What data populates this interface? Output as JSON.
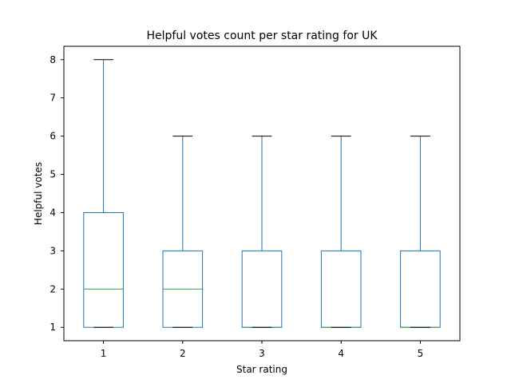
{
  "chart_data": {
    "type": "box",
    "title": "Helpful votes count per star rating for UK",
    "xlabel": "Star rating",
    "ylabel": "Helpful votes",
    "categories": [
      "1",
      "2",
      "3",
      "4",
      "5"
    ],
    "ylim": [
      0.65,
      8.35
    ],
    "yticks": [
      1,
      2,
      3,
      4,
      5,
      6,
      7,
      8
    ],
    "grid": false,
    "boxes": [
      {
        "category": "1",
        "whisker_low": 1,
        "q1": 1,
        "median": 2,
        "q3": 4,
        "whisker_high": 8
      },
      {
        "category": "2",
        "whisker_low": 1,
        "q1": 1,
        "median": 2,
        "q3": 3,
        "whisker_high": 6
      },
      {
        "category": "3",
        "whisker_low": 1,
        "q1": 1,
        "median": 1,
        "q3": 3,
        "whisker_high": 6
      },
      {
        "category": "4",
        "whisker_low": 1,
        "q1": 1,
        "median": 1,
        "q3": 3,
        "whisker_high": 6
      },
      {
        "category": "5",
        "whisker_low": 1,
        "q1": 1,
        "median": 1,
        "q3": 3,
        "whisker_high": 6
      }
    ],
    "colors": {
      "box": "#1f77b4",
      "median": "#2ca02c",
      "cap": "#000000",
      "axis": "#000000"
    }
  }
}
